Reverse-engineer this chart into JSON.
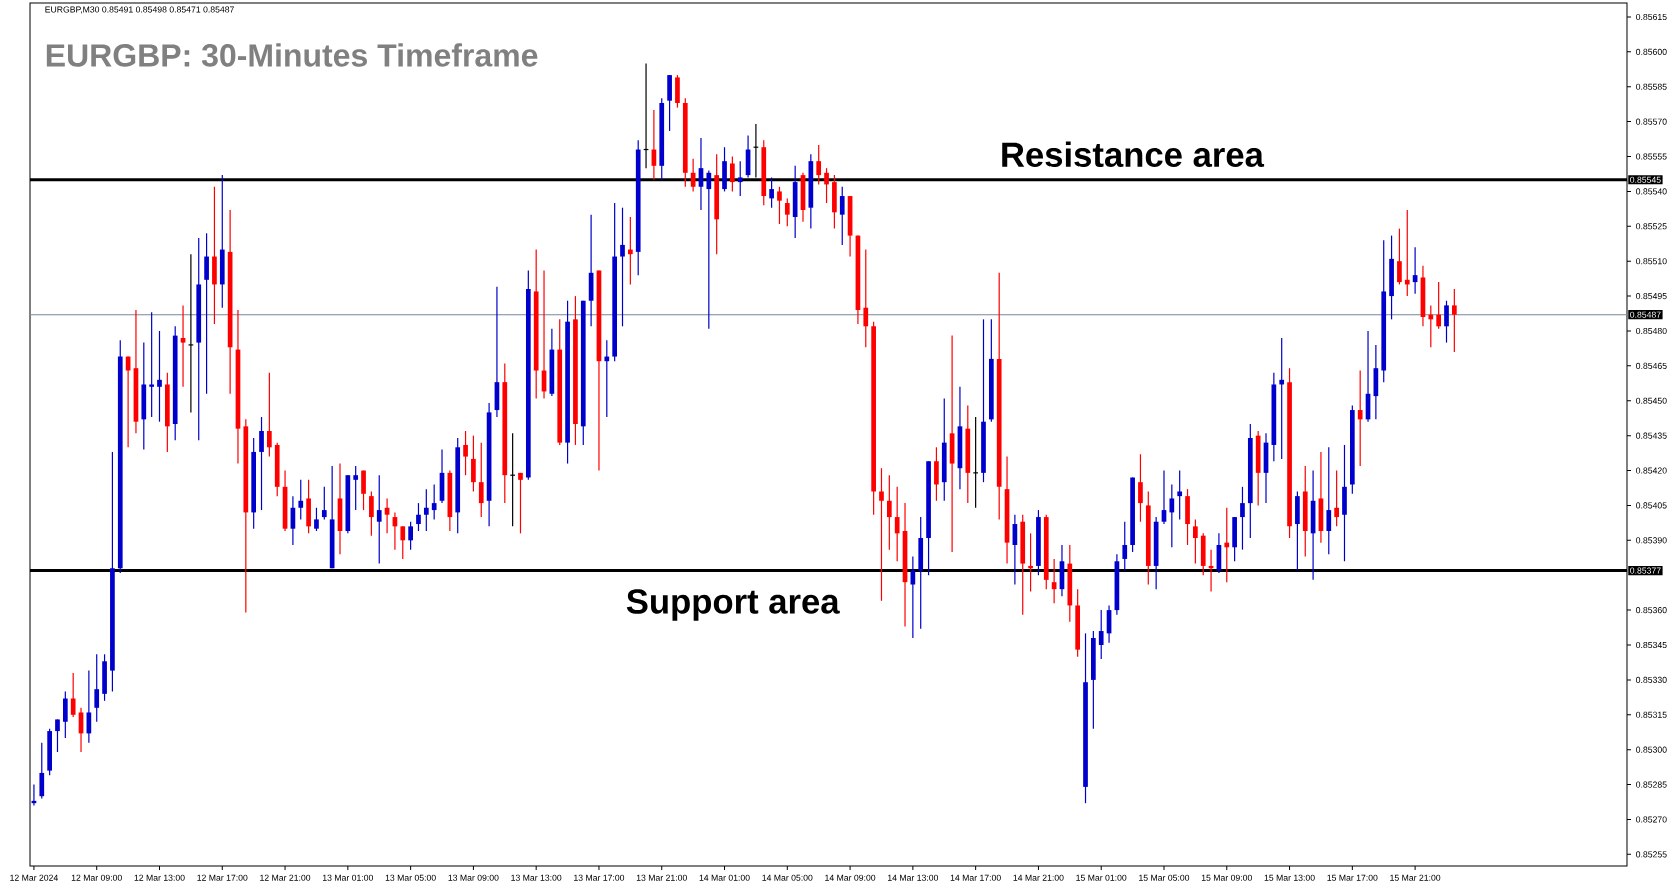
{
  "chart_data": {
    "type": "candlestick",
    "title": "EURGBP: 30-Minutes Timeframe",
    "annotations": [
      "EURGBP,M30 0.85491 0.85498 0.85471 0.85487",
      {
        "text": "Resistance area",
        "y": 0.85545
      },
      {
        "text": "Support area",
        "y": 0.85377
      }
    ],
    "colors": [
      "#0000cc",
      "#0000cc",
      "#0000cc",
      "#0000cc",
      "#0000cc",
      "#ff0000",
      "#ff0000",
      "#0000cc",
      "#0000cc",
      "#0000cc",
      "#0000cc",
      "#0000cc",
      "#ff0000",
      "#ff0000",
      "#0000cc",
      "#0000cc",
      "#0000cc",
      "#ff0000",
      "#0000cc",
      "#ff0000",
      "#000000",
      "#0000cc",
      "#0000cc",
      "#ff0000",
      "#0000cc",
      "#ff0000",
      "#ff0000",
      "#ff0000",
      "#0000cc",
      "#0000cc",
      "#ff0000",
      "#ff0000",
      "#ff0000",
      "#0000cc",
      "#0000cc",
      "#ff0000",
      "#0000cc",
      "#0000cc",
      "#0000cc",
      "#ff0000",
      "#0000cc",
      "#0000cc",
      "#ff0000",
      "#ff0000",
      "#0000cc",
      "#ff0000",
      "#ff0000",
      "#ff0000",
      "#0000cc",
      "#0000cc",
      "#0000cc",
      "#0000cc",
      "#0000cc",
      "#ff0000",
      "#0000cc",
      "#ff0000",
      "#ff0000",
      "#ff0000",
      "#0000cc",
      "#0000cc",
      "#ff0000",
      "#000000",
      "#ff0000",
      "#0000cc",
      "#ff0000",
      "#ff0000",
      "#0000cc",
      "#ff0000",
      "#0000cc",
      "#ff0000",
      "#0000cc",
      "#0000cc",
      "#ff0000",
      "#0000cc",
      "#0000cc",
      "#0000cc",
      "#ff0000",
      "#0000cc",
      "#000000",
      "#ff0000",
      "#0000cc",
      "#0000cc",
      "#ff0000",
      "#ff0000",
      "#ff0000",
      "#0000cc",
      "#0000cc",
      "#ff0000",
      "#0000cc",
      "#ff0000",
      "#0000cc",
      "#0000cc",
      "#000000",
      "#ff0000",
      "#0000cc",
      "#ff0000",
      "#ff0000",
      "#0000cc",
      "#ff0000",
      "#0000cc",
      "#ff0000",
      "#ff0000",
      "#ff0000",
      "#0000cc",
      "#ff0000",
      "#ff0000",
      "#ff0000",
      "#ff0000",
      "#ff0000",
      "#ff0000",
      "#ff0000",
      "#ff0000",
      "#0000cc",
      "#0000cc",
      "#0000cc",
      "#ff0000",
      "#0000cc",
      "#ff0000",
      "#0000cc",
      "#ff0000",
      "#000000",
      "#0000cc",
      "#0000cc",
      "#ff0000",
      "#ff0000",
      "#0000cc",
      "#ff0000",
      "#ff0000",
      "#0000cc",
      "#ff0000",
      "#ff0000",
      "#0000cc",
      "#ff0000",
      "#ff0000",
      "#0000cc",
      "#0000cc",
      "#0000cc",
      "#0000cc",
      "#0000cc",
      "#0000cc",
      "#0000cc",
      "#ff0000",
      "#ff0000",
      "#0000cc",
      "#0000cc",
      "#0000cc",
      "#0000cc",
      "#ff0000",
      "#ff0000",
      "#ff0000",
      "#ff0000",
      "#0000cc",
      "#ff0000",
      "#0000cc",
      "#0000cc",
      "#0000cc",
      "#ff0000",
      "#0000cc",
      "#0000cc",
      "#0000cc",
      "#ff0000",
      "#0000cc",
      "#ff0000",
      "#0000cc",
      "#ff0000",
      "#0000cc",
      "#ff0000",
      "#0000cc",
      "#0000cc",
      "#ff0000",
      "#0000cc",
      "#0000cc",
      "#0000cc",
      "#0000cc",
      "#ff0000",
      "#ff0000",
      "#0000cc",
      "#ff0000",
      "#ff0000",
      "#ff0000",
      "#0000cc",
      "#ff0000"
    ],
    "x": [
      "2024-03-12T05:00",
      "2024-03-12T05:30",
      "2024-03-12T06:00",
      "2024-03-12T06:30",
      "2024-03-12T07:00",
      "2024-03-12T07:30",
      "2024-03-12T08:00",
      "2024-03-12T08:30",
      "2024-03-12T09:00",
      "2024-03-12T09:30",
      "2024-03-12T10:00",
      "2024-03-12T10:30",
      "2024-03-12T11:00",
      "2024-03-12T11:30",
      "2024-03-12T12:00",
      "2024-03-12T12:30",
      "2024-03-12T13:00",
      "2024-03-12T13:30",
      "2024-03-12T14:00",
      "2024-03-12T14:30",
      "2024-03-12T15:00",
      "2024-03-12T15:30",
      "2024-03-12T16:00",
      "2024-03-12T16:30",
      "2024-03-12T17:00",
      "2024-03-12T17:30",
      "2024-03-12T18:00",
      "2024-03-12T18:30",
      "2024-03-12T19:00",
      "2024-03-12T19:30",
      "2024-03-12T20:00",
      "2024-03-12T20:30",
      "2024-03-12T21:00",
      "2024-03-12T21:30",
      "2024-03-12T22:00",
      "2024-03-12T22:30",
      "2024-03-12T23:00",
      "2024-03-12T23:30",
      "2024-03-13T00:00",
      "2024-03-13T00:30",
      "2024-03-13T01:00",
      "2024-03-13T01:30",
      "2024-03-13T02:00",
      "2024-03-13T02:30",
      "2024-03-13T03:00",
      "2024-03-13T03:30",
      "2024-03-13T04:00",
      "2024-03-13T04:30",
      "2024-03-13T05:00",
      "2024-03-13T05:30",
      "2024-03-13T06:00",
      "2024-03-13T06:30",
      "2024-03-13T07:00",
      "2024-03-13T07:30",
      "2024-03-13T08:00",
      "2024-03-13T08:30",
      "2024-03-13T09:00",
      "2024-03-13T09:30",
      "2024-03-13T10:00",
      "2024-03-13T10:30",
      "2024-03-13T11:00",
      "2024-03-13T11:30",
      "2024-03-13T12:00",
      "2024-03-13T12:30",
      "2024-03-13T13:00",
      "2024-03-13T13:30",
      "2024-03-13T14:00",
      "2024-03-13T14:30",
      "2024-03-13T15:00",
      "2024-03-13T15:30",
      "2024-03-13T16:00",
      "2024-03-13T16:30",
      "2024-03-13T17:00",
      "2024-03-13T17:30",
      "2024-03-13T18:00",
      "2024-03-13T18:30",
      "2024-03-13T19:00",
      "2024-03-13T19:30",
      "2024-03-13T20:00",
      "2024-03-13T20:30",
      "2024-03-13T21:00",
      "2024-03-13T21:30",
      "2024-03-13T22:00",
      "2024-03-13T22:30",
      "2024-03-13T23:00",
      "2024-03-13T23:30",
      "2024-03-14T00:00",
      "2024-03-14T00:30",
      "2024-03-14T01:00",
      "2024-03-14T01:30",
      "2024-03-14T02:00",
      "2024-03-14T02:30",
      "2024-03-14T03:00",
      "2024-03-14T03:30",
      "2024-03-14T04:00",
      "2024-03-14T04:30",
      "2024-03-14T05:00",
      "2024-03-14T05:30",
      "2024-03-14T06:00",
      "2024-03-14T06:30",
      "2024-03-14T07:00",
      "2024-03-14T07:30",
      "2024-03-14T08:00",
      "2024-03-14T08:30",
      "2024-03-14T09:00",
      "2024-03-14T09:30",
      "2024-03-14T10:00",
      "2024-03-14T10:30",
      "2024-03-14T11:00",
      "2024-03-14T11:30",
      "2024-03-14T12:00",
      "2024-03-14T12:30",
      "2024-03-14T13:00",
      "2024-03-14T13:30",
      "2024-03-14T14:00",
      "2024-03-14T14:30",
      "2024-03-14T15:00",
      "2024-03-14T15:30",
      "2024-03-14T16:00",
      "2024-03-14T16:30",
      "2024-03-14T17:00",
      "2024-03-14T17:30",
      "2024-03-14T18:00",
      "2024-03-14T18:30",
      "2024-03-14T19:00",
      "2024-03-14T19:30",
      "2024-03-14T20:00",
      "2024-03-14T20:30",
      "2024-03-14T21:00",
      "2024-03-14T21:30",
      "2024-03-14T22:00",
      "2024-03-14T22:30",
      "2024-03-14T23:00",
      "2024-03-14T23:30",
      "2024-03-15T00:00",
      "2024-03-15T00:30",
      "2024-03-15T01:00",
      "2024-03-15T01:30",
      "2024-03-15T02:00",
      "2024-03-15T02:30",
      "2024-03-15T03:00",
      "2024-03-15T03:30",
      "2024-03-15T04:00",
      "2024-03-15T04:30",
      "2024-03-15T05:00",
      "2024-03-15T05:30",
      "2024-03-15T06:00",
      "2024-03-15T06:30",
      "2024-03-15T07:00",
      "2024-03-15T07:30",
      "2024-03-15T08:00",
      "2024-03-15T08:30",
      "2024-03-15T09:00",
      "2024-03-15T09:30",
      "2024-03-15T10:00",
      "2024-03-15T10:30",
      "2024-03-15T11:00",
      "2024-03-15T11:30",
      "2024-03-15T12:00",
      "2024-03-15T12:30",
      "2024-03-15T13:00",
      "2024-03-15T13:30",
      "2024-03-15T14:00",
      "2024-03-15T14:30",
      "2024-03-15T15:00",
      "2024-03-15T15:30",
      "2024-03-15T16:00",
      "2024-03-15T16:30",
      "2024-03-15T17:00",
      "2024-03-15T17:30",
      "2024-03-15T18:00",
      "2024-03-15T18:30",
      "2024-03-15T19:00",
      "2024-03-15T19:30",
      "2024-03-15T20:00",
      "2024-03-15T20:30",
      "2024-03-15T21:00",
      "2024-03-15T21:30",
      "2024-03-15T22:00",
      "2024-03-15T22:30",
      "2024-03-15T23:00",
      "2024-03-15T23:30"
    ],
    "ohlc": [
      [
        0.85277,
        0.85285,
        0.85276,
        0.85278
      ],
      [
        0.8528,
        0.85303,
        0.85279,
        0.8529
      ],
      [
        0.85291,
        0.85309,
        0.85289,
        0.85308
      ],
      [
        0.85308,
        0.85313,
        0.85299,
        0.85313
      ],
      [
        0.85312,
        0.85325,
        0.85305,
        0.85322
      ],
      [
        0.85322,
        0.85333,
        0.85314,
        0.85315
      ],
      [
        0.85316,
        0.85318,
        0.85299,
        0.85307
      ],
      [
        0.85307,
        0.85334,
        0.85303,
        0.85316
      ],
      [
        0.85318,
        0.85341,
        0.85312,
        0.85326
      ],
      [
        0.85324,
        0.85341,
        0.85321,
        0.85338
      ],
      [
        0.85334,
        0.85428,
        0.85325,
        0.85378
      ],
      [
        0.85378,
        0.85476,
        0.85376,
        0.85469
      ],
      [
        0.85469,
        0.85469,
        0.8543,
        0.85463
      ],
      [
        0.85464,
        0.85489,
        0.85436,
        0.85441
      ],
      [
        0.85442,
        0.85475,
        0.85429,
        0.85457
      ],
      [
        0.85456,
        0.85488,
        0.85443,
        0.85457
      ],
      [
        0.85456,
        0.8548,
        0.85441,
        0.85459
      ],
      [
        0.85457,
        0.85462,
        0.85428,
        0.85439
      ],
      [
        0.8544,
        0.85482,
        0.85433,
        0.85478
      ],
      [
        0.85477,
        0.85491,
        0.85456,
        0.85475
      ],
      [
        0.85474,
        0.85513,
        0.85445,
        0.85474
      ],
      [
        0.85475,
        0.8552,
        0.85433,
        0.855
      ],
      [
        0.85502,
        0.85522,
        0.85453,
        0.85512
      ],
      [
        0.85512,
        0.85542,
        0.85483,
        0.855
      ],
      [
        0.855,
        0.85547,
        0.8549,
        0.85515
      ],
      [
        0.85514,
        0.85532,
        0.85453,
        0.85473
      ],
      [
        0.85472,
        0.85489,
        0.85423,
        0.85438
      ],
      [
        0.85439,
        0.85442,
        0.85359,
        0.85402
      ],
      [
        0.85402,
        0.85434,
        0.85395,
        0.85428
      ],
      [
        0.85428,
        0.85443,
        0.85403,
        0.85437
      ],
      [
        0.85437,
        0.85462,
        0.85426,
        0.8543
      ],
      [
        0.85431,
        0.85432,
        0.85409,
        0.85413
      ],
      [
        0.85413,
        0.8542,
        0.85394,
        0.85395
      ],
      [
        0.85395,
        0.85409,
        0.85388,
        0.85404
      ],
      [
        0.85404,
        0.85416,
        0.85399,
        0.85407
      ],
      [
        0.85408,
        0.85416,
        0.85393,
        0.85396
      ],
      [
        0.85395,
        0.85404,
        0.85394,
        0.85399
      ],
      [
        0.854,
        0.85413,
        0.85399,
        0.85403
      ],
      [
        0.85378,
        0.85422,
        0.85378,
        0.85399
      ],
      [
        0.85408,
        0.85423,
        0.85384,
        0.85394
      ],
      [
        0.85394,
        0.85418,
        0.85393,
        0.85418
      ],
      [
        0.85416,
        0.85422,
        0.85403,
        0.85418
      ],
      [
        0.8542,
        0.8542,
        0.85403,
        0.8541
      ],
      [
        0.85409,
        0.85411,
        0.85392,
        0.854
      ],
      [
        0.85398,
        0.85418,
        0.8538,
        0.85403
      ],
      [
        0.85404,
        0.85408,
        0.85393,
        0.85401
      ],
      [
        0.854,
        0.85402,
        0.85386,
        0.85396
      ],
      [
        0.85396,
        0.85396,
        0.85382,
        0.8539
      ],
      [
        0.8539,
        0.85398,
        0.85386,
        0.85396
      ],
      [
        0.85397,
        0.85406,
        0.85394,
        0.85401
      ],
      [
        0.85401,
        0.85412,
        0.85394,
        0.85404
      ],
      [
        0.85403,
        0.85414,
        0.85399,
        0.85406
      ],
      [
        0.85407,
        0.85429,
        0.85406,
        0.85419
      ],
      [
        0.85419,
        0.8542,
        0.85394,
        0.854
      ],
      [
        0.85402,
        0.85434,
        0.85393,
        0.8543
      ],
      [
        0.85431,
        0.85437,
        0.85418,
        0.85426
      ],
      [
        0.85425,
        0.85435,
        0.85411,
        0.85415
      ],
      [
        0.85415,
        0.85432,
        0.854,
        0.85406
      ],
      [
        0.85407,
        0.85449,
        0.85396,
        0.85445
      ],
      [
        0.85446,
        0.85499,
        0.85443,
        0.85458
      ],
      [
        0.85458,
        0.85466,
        0.85406,
        0.85418
      ],
      [
        0.85418,
        0.85436,
        0.85396,
        0.85418
      ],
      [
        0.85419,
        0.85419,
        0.85393,
        0.85416
      ],
      [
        0.85417,
        0.85506,
        0.85416,
        0.85498
      ],
      [
        0.85497,
        0.85515,
        0.85451,
        0.85463
      ],
      [
        0.85463,
        0.85506,
        0.85451,
        0.85454
      ],
      [
        0.85453,
        0.85481,
        0.85452,
        0.85472
      ],
      [
        0.85472,
        0.85485,
        0.85431,
        0.85432
      ],
      [
        0.85432,
        0.85493,
        0.85423,
        0.85484
      ],
      [
        0.85485,
        0.85495,
        0.85431,
        0.8544
      ],
      [
        0.85439,
        0.85493,
        0.85431,
        0.85493
      ],
      [
        0.85493,
        0.8553,
        0.85482,
        0.85505
      ],
      [
        0.85506,
        0.85506,
        0.8542,
        0.85467
      ],
      [
        0.85467,
        0.85476,
        0.85443,
        0.85469
      ],
      [
        0.85469,
        0.85535,
        0.85467,
        0.85512
      ],
      [
        0.85512,
        0.85533,
        0.85482,
        0.85517
      ],
      [
        0.85515,
        0.85529,
        0.855,
        0.85513
      ],
      [
        0.85514,
        0.85562,
        0.85504,
        0.85558
      ],
      [
        0.85558,
        0.85595,
        0.8555,
        0.85558
      ],
      [
        0.85558,
        0.85575,
        0.85545,
        0.85551
      ],
      [
        0.85551,
        0.8558,
        0.85545,
        0.85578
      ],
      [
        0.85579,
        0.8559,
        0.85566,
        0.8559
      ],
      [
        0.85589,
        0.8559,
        0.85576,
        0.85578
      ],
      [
        0.85578,
        0.8558,
        0.85542,
        0.85548
      ],
      [
        0.85548,
        0.85554,
        0.8554,
        0.85542
      ],
      [
        0.85542,
        0.85563,
        0.85532,
        0.8555
      ],
      [
        0.85541,
        0.85549,
        0.85481,
        0.85548
      ],
      [
        0.85547,
        0.85556,
        0.85513,
        0.85528
      ],
      [
        0.85541,
        0.85559,
        0.8554,
        0.85553
      ],
      [
        0.85552,
        0.85555,
        0.8554,
        0.85544
      ],
      [
        0.85544,
        0.85553,
        0.85538,
        0.85546
      ],
      [
        0.85547,
        0.85564,
        0.85546,
        0.85558
      ],
      [
        0.85559,
        0.85569,
        0.85546,
        0.85559
      ],
      [
        0.85559,
        0.85562,
        0.85534,
        0.85538
      ],
      [
        0.85537,
        0.85546,
        0.85533,
        0.85541
      ],
      [
        0.8554,
        0.85542,
        0.85526,
        0.85536
      ],
      [
        0.85535,
        0.85537,
        0.85525,
        0.8553
      ],
      [
        0.85529,
        0.85551,
        0.8552,
        0.85544
      ],
      [
        0.85547,
        0.85548,
        0.85527,
        0.85532
      ],
      [
        0.85533,
        0.85556,
        0.85524,
        0.85553
      ],
      [
        0.85553,
        0.8556,
        0.85543,
        0.85547
      ],
      [
        0.85548,
        0.8555,
        0.85535,
        0.85543
      ],
      [
        0.85544,
        0.85547,
        0.85524,
        0.85531
      ],
      [
        0.8553,
        0.85542,
        0.85517,
        0.85538
      ],
      [
        0.85538,
        0.85538,
        0.85512,
        0.85521
      ],
      [
        0.85521,
        0.85521,
        0.85483,
        0.85489
      ],
      [
        0.8549,
        0.85515,
        0.85473,
        0.85482
      ],
      [
        0.85482,
        0.85484,
        0.85401,
        0.85411
      ],
      [
        0.85411,
        0.85421,
        0.85364,
        0.85407
      ],
      [
        0.85407,
        0.85418,
        0.85386,
        0.854
      ],
      [
        0.854,
        0.85413,
        0.85381,
        0.85393
      ],
      [
        0.85394,
        0.85406,
        0.85353,
        0.85372
      ],
      [
        0.85371,
        0.85383,
        0.85348,
        0.85377
      ],
      [
        0.85377,
        0.854,
        0.85352,
        0.85391
      ],
      [
        0.85391,
        0.85424,
        0.85375,
        0.85424
      ],
      [
        0.85424,
        0.8543,
        0.85407,
        0.85414
      ],
      [
        0.85415,
        0.85451,
        0.85407,
        0.85432
      ],
      [
        0.85436,
        0.85478,
        0.85385,
        0.85423
      ],
      [
        0.85421,
        0.85456,
        0.85412,
        0.85439
      ],
      [
        0.85438,
        0.85448,
        0.85406,
        0.85419
      ],
      [
        0.85419,
        0.85443,
        0.85404,
        0.85419
      ],
      [
        0.85419,
        0.85485,
        0.85415,
        0.85441
      ],
      [
        0.85442,
        0.85485,
        0.85441,
        0.85468
      ],
      [
        0.85468,
        0.85505,
        0.85399,
        0.85413
      ],
      [
        0.85412,
        0.85426,
        0.8538,
        0.85389
      ],
      [
        0.85388,
        0.85401,
        0.85371,
        0.85397
      ],
      [
        0.85398,
        0.85401,
        0.85358,
        0.8538
      ],
      [
        0.85379,
        0.85393,
        0.85368,
        0.85378
      ],
      [
        0.85379,
        0.85403,
        0.85375,
        0.854
      ],
      [
        0.854,
        0.85401,
        0.85369,
        0.85373
      ],
      [
        0.85372,
        0.85382,
        0.85363,
        0.85369
      ],
      [
        0.85369,
        0.85388,
        0.85366,
        0.85381
      ],
      [
        0.8538,
        0.85388,
        0.85355,
        0.85362
      ],
      [
        0.85362,
        0.85369,
        0.8534,
        0.85343
      ],
      [
        0.85284,
        0.8535,
        0.85277,
        0.85329
      ],
      [
        0.8533,
        0.85351,
        0.85309,
        0.85348
      ],
      [
        0.85345,
        0.8536,
        0.85339,
        0.85351
      ],
      [
        0.8535,
        0.85362,
        0.85346,
        0.8536
      ],
      [
        0.8536,
        0.85384,
        0.85358,
        0.85381
      ],
      [
        0.85382,
        0.85398,
        0.85377,
        0.85388
      ],
      [
        0.85388,
        0.85417,
        0.85385,
        0.85417
      ],
      [
        0.85415,
        0.85427,
        0.85398,
        0.85406
      ],
      [
        0.85405,
        0.85411,
        0.85371,
        0.85379
      ],
      [
        0.85379,
        0.854,
        0.85369,
        0.85398
      ],
      [
        0.85398,
        0.8542,
        0.85397,
        0.85403
      ],
      [
        0.85402,
        0.85414,
        0.85387,
        0.85408
      ],
      [
        0.85409,
        0.8542,
        0.85399,
        0.85411
      ],
      [
        0.85409,
        0.85412,
        0.85388,
        0.85397
      ],
      [
        0.85396,
        0.85399,
        0.8538,
        0.85391
      ],
      [
        0.85392,
        0.85393,
        0.85375,
        0.85379
      ],
      [
        0.85379,
        0.85386,
        0.85368,
        0.85378
      ],
      [
        0.85377,
        0.85393,
        0.85376,
        0.85388
      ],
      [
        0.85389,
        0.85404,
        0.85372,
        0.85387
      ],
      [
        0.85387,
        0.854,
        0.85381,
        0.854
      ],
      [
        0.854,
        0.85413,
        0.85386,
        0.85406
      ],
      [
        0.85406,
        0.8544,
        0.85391,
        0.85434
      ],
      [
        0.85435,
        0.85437,
        0.85405,
        0.85419
      ],
      [
        0.85419,
        0.85436,
        0.85406,
        0.85432
      ],
      [
        0.85431,
        0.85462,
        0.85424,
        0.85457
      ],
      [
        0.85457,
        0.85477,
        0.85425,
        0.85459
      ],
      [
        0.85458,
        0.85464,
        0.85391,
        0.85396
      ],
      [
        0.85397,
        0.85411,
        0.85377,
        0.85409
      ],
      [
        0.85411,
        0.85422,
        0.85383,
        0.85394
      ],
      [
        0.85393,
        0.8542,
        0.85373,
        0.85407
      ],
      [
        0.85408,
        0.85428,
        0.85389,
        0.85394
      ],
      [
        0.85394,
        0.8543,
        0.85384,
        0.85403
      ],
      [
        0.85404,
        0.8542,
        0.85396,
        0.854
      ],
      [
        0.85401,
        0.85431,
        0.85381,
        0.85413
      ],
      [
        0.85414,
        0.85448,
        0.8541,
        0.85446
      ],
      [
        0.85446,
        0.85463,
        0.85422,
        0.85442
      ],
      [
        0.85442,
        0.8548,
        0.85441,
        0.85453
      ],
      [
        0.85452,
        0.85474,
        0.85442,
        0.85464
      ],
      [
        0.85463,
        0.85519,
        0.85458,
        0.85497
      ],
      [
        0.85495,
        0.85521,
        0.85485,
        0.85511
      ],
      [
        0.8551,
        0.85524,
        0.855,
        0.85501
      ],
      [
        0.85502,
        0.85532,
        0.85495,
        0.855
      ],
      [
        0.85501,
        0.85516,
        0.85496,
        0.85504
      ],
      [
        0.85503,
        0.85508,
        0.85482,
        0.85486
      ],
      [
        0.85487,
        0.85491,
        0.85473,
        0.85485
      ],
      [
        0.85487,
        0.85501,
        0.85481,
        0.85482
      ],
      [
        0.85482,
        0.85493,
        0.85475,
        0.85491
      ],
      [
        0.85491,
        0.85498,
        0.85471,
        0.85487
      ]
    ],
    "xlim": [
      "2024-03-12T04:45",
      "2024-03-16T10:30"
    ],
    "xticks": [
      {
        "value": "2024-03-12T05:00",
        "label": "12 Mar 2024"
      },
      {
        "value": "2024-03-12T09:00",
        "label": "12 Mar 09:00"
      },
      {
        "value": "2024-03-12T13:00",
        "label": "12 Mar 13:00"
      },
      {
        "value": "2024-03-12T17:00",
        "label": "12 Mar 17:00"
      },
      {
        "value": "2024-03-12T21:00",
        "label": "12 Mar 21:00"
      },
      {
        "value": "2024-03-13T01:00",
        "label": "13 Mar 01:00"
      },
      {
        "value": "2024-03-13T05:00",
        "label": "13 Mar 05:00"
      },
      {
        "value": "2024-03-13T09:00",
        "label": "13 Mar 09:00"
      },
      {
        "value": "2024-03-13T13:00",
        "label": "13 Mar 13:00"
      },
      {
        "value": "2024-03-13T17:00",
        "label": "13 Mar 17:00"
      },
      {
        "value": "2024-03-13T21:00",
        "label": "13 Mar 21:00"
      },
      {
        "value": "2024-03-14T01:00",
        "label": "14 Mar 01:00"
      },
      {
        "value": "2024-03-14T05:00",
        "label": "14 Mar 05:00"
      },
      {
        "value": "2024-03-14T09:00",
        "label": "14 Mar 09:00"
      },
      {
        "value": "2024-03-14T13:00",
        "label": "14 Mar 13:00"
      },
      {
        "value": "2024-03-14T17:00",
        "label": "14 Mar 17:00"
      },
      {
        "value": "2024-03-14T21:00",
        "label": "14 Mar 21:00"
      },
      {
        "value": "2024-03-15T01:00",
        "label": "15 Mar 01:00"
      },
      {
        "value": "2024-03-15T05:00",
        "label": "15 Mar 05:00"
      },
      {
        "value": "2024-03-15T09:00",
        "label": "15 Mar 09:00"
      },
      {
        "value": "2024-03-15T13:00",
        "label": "15 Mar 13:00"
      },
      {
        "value": "2024-03-15T17:00",
        "label": "15 Mar 17:00"
      },
      {
        "value": "2024-03-15T21:00",
        "label": "15 Mar 21:00"
      }
    ],
    "ylim": [
      0.8525,
      0.85621
    ],
    "yticks": [
      0.85255,
      {
        "value": 0.8527,
        "label": "0.85270"
      },
      0.85285,
      {
        "value": 0.853,
        "label": "0.85300"
      },
      0.85315,
      {
        "value": 0.8533,
        "label": "0.85330"
      },
      0.85345,
      {
        "value": 0.8536,
        "label": "0.85360"
      },
      {
        "value": 0.8539,
        "label": "0.85390"
      },
      0.85405,
      {
        "value": 0.8542,
        "label": "0.85420"
      },
      0.85435,
      {
        "value": 0.8545,
        "label": "0.85450"
      },
      0.85465,
      {
        "value": 0.8548,
        "label": "0.85480"
      },
      0.85495,
      {
        "value": 0.8551,
        "label": "0.85510"
      },
      0.85525,
      {
        "value": 0.8554,
        "label": "0.85540"
      },
      0.85555,
      {
        "value": 0.8557,
        "label": "0.85570"
      },
      0.85585,
      {
        "value": 0.856,
        "label": "0.85600"
      },
      0.85615
    ],
    "ref_lines": [
      {
        "axis": "y",
        "value": 0.85545,
        "label": "0.85545",
        "color": "#000000",
        "line_style": "solid"
      },
      {
        "axis": "y",
        "value": 0.85377,
        "label": "0.85377",
        "color": "#000000",
        "line_style": "solid"
      },
      {
        "axis": "y",
        "value": 0.85487,
        "label": "0.85487",
        "color": "#778899",
        "line_style": "solid"
      }
    ]
  }
}
